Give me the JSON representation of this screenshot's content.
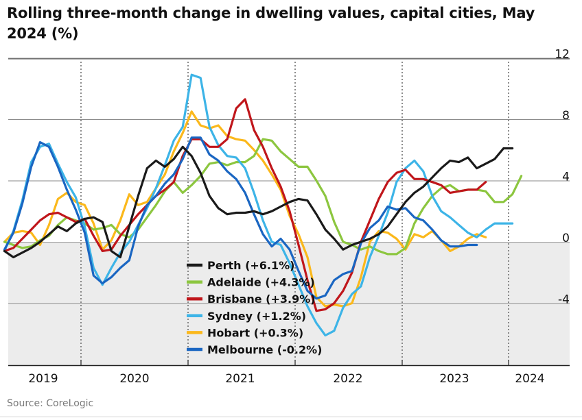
{
  "title": "Rolling three-month change in dwelling values, capital cities, May 2024 (%)",
  "source": "Source: CoreLogic",
  "colors": {
    "Perth": "#1a1a1a",
    "Adelaide": "#8cc63f",
    "Brisbane": "#c0161b",
    "Sydney": "#3db4e7",
    "Hobart": "#fbb81b",
    "Melbourne": "#1a66c2",
    "grid": "#8a8a8a",
    "shade": "#ececec"
  },
  "chart_data": {
    "type": "line",
    "x_start": "2018-12",
    "x_end": "2024-05",
    "ylim": [
      -8,
      12
    ],
    "yticks": [
      12,
      8,
      4,
      0,
      -4
    ],
    "xticks": [
      "2019",
      "2020",
      "2021",
      "2022",
      "2023",
      "2024"
    ],
    "negative_region_shaded": true,
    "legend_position": "lower-center",
    "series": [
      {
        "name": "Perth",
        "label": "Perth (+6.1%)",
        "values": [
          -0.6,
          -1.0,
          -0.7,
          -0.4,
          0.0,
          0.5,
          1.0,
          0.7,
          1.2,
          1.5,
          1.6,
          1.3,
          -0.6,
          -1.0,
          1.0,
          3.0,
          4.8,
          5.3,
          4.9,
          5.4,
          6.2,
          5.6,
          4.5,
          3.0,
          2.2,
          1.8,
          1.9,
          1.9,
          2.0,
          1.8,
          2.0,
          2.3,
          2.6,
          2.8,
          2.7,
          1.8,
          0.8,
          0.2,
          -0.5,
          -0.2,
          0.0,
          0.2,
          0.5,
          1.0,
          1.8,
          2.6,
          3.2,
          3.6,
          4.2,
          4.8,
          5.3,
          5.2,
          5.5,
          4.8,
          5.1,
          5.4,
          6.1,
          6.1
        ]
      },
      {
        "name": "Adelaide",
        "label": "Adelaide (+4.3%)",
        "values": [
          0.0,
          -0.2,
          -0.4,
          -0.3,
          0.1,
          0.4,
          1.1,
          1.6,
          1.4,
          1.2,
          0.8,
          0.9,
          1.1,
          0.5,
          0.3,
          0.8,
          1.6,
          2.4,
          3.3,
          3.9,
          3.2,
          3.7,
          4.3,
          5.1,
          5.2,
          5.0,
          5.2,
          5.2,
          5.6,
          6.7,
          6.6,
          5.9,
          5.4,
          4.9,
          4.9,
          4.0,
          3.0,
          1.3,
          0.0,
          -0.2,
          -0.5,
          -0.3,
          -0.6,
          -0.8,
          -0.8,
          -0.4,
          1.2,
          2.2,
          3.0,
          3.5,
          3.7,
          3.3,
          3.4,
          3.4,
          3.3,
          2.6,
          2.6,
          3.1,
          4.3
        ]
      },
      {
        "name": "Brisbane",
        "label": "Brisbane (+3.9%)",
        "values": [
          -0.6,
          -0.4,
          0.2,
          0.8,
          1.4,
          1.8,
          1.9,
          1.6,
          1.3,
          1.5,
          0.4,
          -0.6,
          -0.5,
          0.4,
          1.1,
          1.8,
          2.4,
          3.0,
          3.4,
          3.9,
          5.6,
          6.7,
          6.7,
          6.2,
          6.2,
          6.7,
          8.7,
          9.3,
          7.3,
          6.2,
          4.8,
          3.6,
          2.0,
          -0.2,
          -2.5,
          -4.5,
          -4.4,
          -4.0,
          -3.2,
          -2.0,
          0.0,
          1.4,
          2.8,
          3.9,
          4.5,
          4.7,
          4.1,
          4.1,
          3.9,
          3.7,
          3.2,
          3.3,
          3.4,
          3.4,
          3.9
        ]
      },
      {
        "name": "Sydney",
        "label": "Sydney (+1.2%)",
        "values": [
          -0.6,
          0.7,
          2.7,
          5.2,
          6.2,
          6.4,
          5.1,
          3.9,
          2.9,
          1.0,
          -1.7,
          -2.8,
          -1.7,
          -0.7,
          0.0,
          1.1,
          2.2,
          3.5,
          5.0,
          6.6,
          7.5,
          10.9,
          10.7,
          7.5,
          6.3,
          5.6,
          5.5,
          4.8,
          3.2,
          1.4,
          0.0,
          -0.2,
          -1.4,
          -2.8,
          -4.2,
          -5.3,
          -6.1,
          -5.8,
          -4.3,
          -3.4,
          -2.9,
          -1.0,
          0.4,
          1.9,
          3.9,
          4.8,
          5.3,
          4.6,
          3.0,
          2.0,
          1.6,
          1.1,
          0.6,
          0.3,
          0.8,
          1.2,
          1.2,
          1.2
        ]
      },
      {
        "name": "Hobart",
        "label": "Hobart (+0.3%)",
        "values": [
          0.0,
          0.6,
          0.7,
          0.6,
          -0.2,
          1.1,
          2.8,
          3.2,
          2.6,
          2.4,
          1.2,
          -0.5,
          0.1,
          1.4,
          3.1,
          2.4,
          2.6,
          3.5,
          4.4,
          5.9,
          7.1,
          8.5,
          7.6,
          7.4,
          7.6,
          6.9,
          6.7,
          6.6,
          6.0,
          5.3,
          4.4,
          3.4,
          1.7,
          0.5,
          -1.0,
          -3.6,
          -4.2,
          -4.1,
          -4.2,
          -4.0,
          -2.3,
          0.0,
          0.7,
          0.6,
          0.2,
          -0.5,
          0.5,
          0.3,
          0.7,
          0.1,
          -0.6,
          -0.3,
          0.2,
          0.5,
          0.3
        ]
      },
      {
        "name": "Melbourne",
        "label": "Melbourne (-0.2%)",
        "values": [
          -0.5,
          0.6,
          2.5,
          4.9,
          6.5,
          6.2,
          4.9,
          3.4,
          2.1,
          0.6,
          -2.2,
          -2.7,
          -2.3,
          -1.7,
          -1.2,
          1.0,
          2.4,
          3.0,
          3.8,
          4.4,
          5.4,
          6.8,
          6.8,
          5.7,
          5.3,
          4.6,
          4.1,
          3.2,
          1.8,
          0.5,
          -0.3,
          0.2,
          -0.5,
          -1.9,
          -3.2,
          -3.7,
          -3.5,
          -2.5,
          -2.1,
          -1.9,
          -0.1,
          0.9,
          1.4,
          2.3,
          2.1,
          2.2,
          1.6,
          1.4,
          0.8,
          0.1,
          -0.3,
          -0.3,
          -0.2,
          -0.2
        ]
      }
    ]
  }
}
